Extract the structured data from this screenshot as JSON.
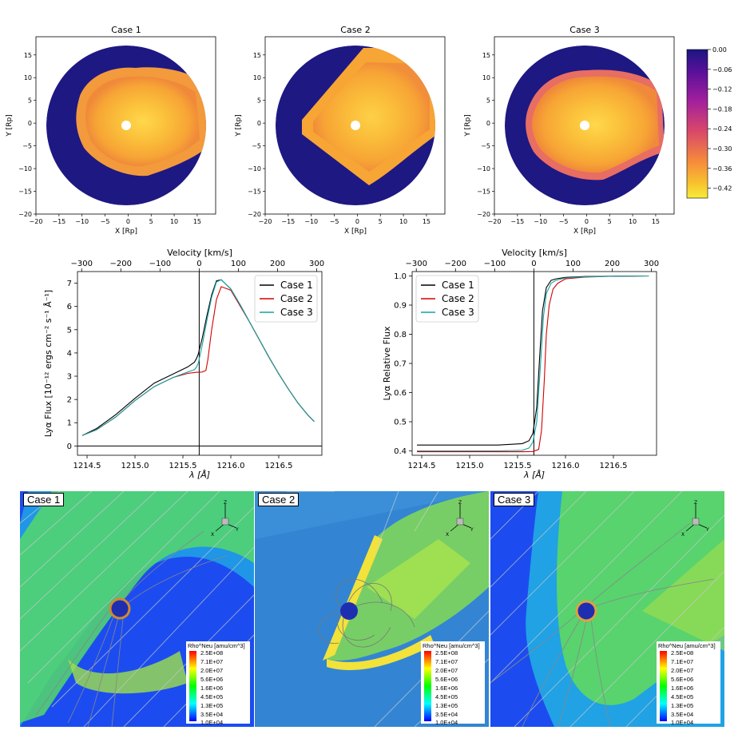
{
  "chart_data": [
    {
      "type": "heatmap",
      "panel": "case1_map",
      "title": "Case 1",
      "xlabel": "X [Rp]",
      "ylabel": "Y [Rp]",
      "xlim": [
        -20,
        19
      ],
      "ylim": [
        -20,
        19
      ],
      "xticks": [
        "−20",
        "−15",
        "−10",
        "−5",
        "0",
        "5",
        "10",
        "15"
      ],
      "yticks": [
        "15",
        "10",
        "5",
        "0",
        "−5",
        "−10",
        "−15",
        "−20"
      ]
    },
    {
      "type": "heatmap",
      "panel": "case2_map",
      "title": "Case 2",
      "xlabel": "X [Rp]",
      "ylabel": "Y [Rp]",
      "xlim": [
        -20,
        19
      ],
      "ylim": [
        -20,
        19
      ],
      "xticks": [
        "−20",
        "−15",
        "−10",
        "−5",
        "0",
        "5",
        "10",
        "15"
      ],
      "yticks": [
        "15",
        "10",
        "5",
        "0",
        "−5",
        "−10",
        "−15",
        "−20"
      ]
    },
    {
      "type": "heatmap",
      "panel": "case3_map",
      "title": "Case 3",
      "xlabel": "X [Rp]",
      "ylabel": "Y [Rp]",
      "xlim": [
        -20,
        19
      ],
      "ylim": [
        -20,
        19
      ],
      "xticks": [
        "−20",
        "−15",
        "−10",
        "−5",
        "0",
        "5",
        "10",
        "15"
      ],
      "yticks": [
        "15",
        "10",
        "5",
        "0",
        "−5",
        "−10",
        "−15",
        "−20"
      ],
      "colorbar": {
        "range": [
          -0.45,
          0.0
        ],
        "ticks": [
          "0.00",
          "−0.06",
          "−0.12",
          "−0.18",
          "−0.24",
          "−0.30",
          "−0.36",
          "−0.42"
        ]
      }
    },
    {
      "type": "line",
      "panel": "flux",
      "xlabel": "λ [Å]",
      "x2label": "Velocity [km/s]",
      "ylabel": "Lyα Flux  [10⁻¹² ergs cm⁻² s⁻¹ Å⁻¹]",
      "xlim": [
        1214.4,
        1216.95
      ],
      "ylim": [
        -0.4,
        7.5
      ],
      "xticks": [
        1214.5,
        1215.0,
        1215.5,
        1216.0,
        1216.5
      ],
      "xtick_labels": [
        "1214.5",
        "1215.0",
        "1215.5",
        "1216.0",
        "1216.5"
      ],
      "yticks": [
        0,
        1,
        2,
        3,
        4,
        5,
        6,
        7
      ],
      "x2ticks": [
        -300,
        -200,
        -100,
        0,
        100,
        200,
        300
      ],
      "x2tick_labels": [
        "−300",
        "−200",
        "−100",
        "0",
        "100",
        "200",
        "300"
      ],
      "vline": 1215.67,
      "legend": "top-right",
      "series": [
        {
          "name": "Case 1",
          "color": "#000000",
          "x": [
            1214.45,
            1214.6,
            1214.8,
            1215.0,
            1215.2,
            1215.4,
            1215.55,
            1215.62,
            1215.64,
            1215.66,
            1215.7,
            1215.75,
            1215.8,
            1215.85,
            1215.9,
            1216.0,
            1216.1,
            1216.2,
            1216.3,
            1216.4,
            1216.5,
            1216.6,
            1216.7,
            1216.8,
            1216.87
          ],
          "y": [
            0.45,
            0.75,
            1.35,
            2.05,
            2.7,
            3.1,
            3.4,
            3.6,
            3.75,
            3.95,
            4.6,
            5.6,
            6.5,
            7.1,
            7.15,
            6.75,
            6.05,
            5.3,
            4.55,
            3.8,
            3.1,
            2.45,
            1.85,
            1.35,
            1.05
          ]
        },
        {
          "name": "Case 2",
          "color": "#d40000",
          "x": [
            1214.45,
            1214.6,
            1214.8,
            1215.0,
            1215.2,
            1215.4,
            1215.55,
            1215.62,
            1215.64,
            1215.66,
            1215.7,
            1215.74,
            1215.76,
            1215.8,
            1215.85,
            1215.9,
            1216.0,
            1216.1,
            1216.2,
            1216.3,
            1216.4,
            1216.5,
            1216.6,
            1216.7,
            1216.8,
            1216.87
          ],
          "y": [
            0.45,
            0.7,
            1.25,
            1.95,
            2.55,
            2.95,
            3.12,
            3.16,
            3.17,
            3.17,
            3.18,
            3.25,
            3.7,
            5.0,
            6.3,
            6.85,
            6.7,
            6.0,
            5.3,
            4.55,
            3.8,
            3.1,
            2.45,
            1.85,
            1.35,
            1.05
          ]
        },
        {
          "name": "Case 3",
          "color": "#17a2a2",
          "x": [
            1214.45,
            1214.6,
            1214.8,
            1215.0,
            1215.2,
            1215.4,
            1215.55,
            1215.62,
            1215.64,
            1215.66,
            1215.7,
            1215.75,
            1215.8,
            1215.85,
            1215.9,
            1216.0,
            1216.1,
            1216.2,
            1216.3,
            1216.4,
            1216.5,
            1216.6,
            1216.7,
            1216.8,
            1216.87
          ],
          "y": [
            0.45,
            0.7,
            1.25,
            1.95,
            2.55,
            2.95,
            3.18,
            3.28,
            3.38,
            3.55,
            4.3,
            5.4,
            6.4,
            7.05,
            7.15,
            6.75,
            6.05,
            5.3,
            4.55,
            3.8,
            3.1,
            2.45,
            1.85,
            1.35,
            1.05
          ]
        }
      ]
    },
    {
      "type": "line",
      "panel": "relative",
      "xlabel": "λ [Å]",
      "x2label": "Velocity [km/s]",
      "ylabel": "Lyα Relative Flux",
      "xlim": [
        1214.4,
        1216.95
      ],
      "ylim": [
        0.385,
        1.015
      ],
      "xticks": [
        1214.5,
        1215.0,
        1215.5,
        1216.0,
        1216.5
      ],
      "xtick_labels": [
        "1214.5",
        "1215.0",
        "1215.5",
        "1216.0",
        "1216.5"
      ],
      "yticks": [
        0.4,
        0.5,
        0.6,
        0.7,
        0.8,
        0.9,
        1.0
      ],
      "ytick_labels": [
        "0.4",
        "0.5",
        "0.6",
        "0.7",
        "0.8",
        "0.9",
        "1.0"
      ],
      "x2ticks": [
        -300,
        -200,
        -100,
        0,
        100,
        200,
        300
      ],
      "x2tick_labels": [
        "−300",
        "−200",
        "−100",
        "0",
        "100",
        "200",
        "300"
      ],
      "vline": 1215.67,
      "legend": "top-left",
      "series": [
        {
          "name": "Case 1",
          "color": "#000000",
          "x": [
            1214.45,
            1215.3,
            1215.55,
            1215.62,
            1215.66,
            1215.7,
            1215.73,
            1215.76,
            1215.8,
            1215.85,
            1215.9,
            1216.0,
            1216.2,
            1216.5,
            1216.87
          ],
          "y": [
            0.42,
            0.42,
            0.425,
            0.435,
            0.46,
            0.55,
            0.72,
            0.88,
            0.96,
            0.985,
            0.99,
            0.995,
            0.998,
            0.999,
            1.0
          ]
        },
        {
          "name": "Case 2",
          "color": "#d40000",
          "x": [
            1214.45,
            1215.3,
            1215.55,
            1215.66,
            1215.72,
            1215.75,
            1215.78,
            1215.8,
            1215.83,
            1215.87,
            1215.92,
            1216.0,
            1216.2,
            1216.5,
            1216.87
          ],
          "y": [
            0.397,
            0.397,
            0.397,
            0.398,
            0.405,
            0.47,
            0.65,
            0.8,
            0.9,
            0.955,
            0.975,
            0.99,
            0.996,
            0.999,
            1.0
          ]
        },
        {
          "name": "Case 3",
          "color": "#17a2a2",
          "x": [
            1214.45,
            1215.3,
            1215.55,
            1215.62,
            1215.66,
            1215.7,
            1215.74,
            1215.77,
            1215.8,
            1215.85,
            1215.9,
            1216.0,
            1216.2,
            1216.5,
            1216.87
          ],
          "y": [
            0.4,
            0.4,
            0.402,
            0.41,
            0.43,
            0.5,
            0.7,
            0.86,
            0.94,
            0.975,
            0.985,
            0.993,
            0.997,
            0.999,
            1.0
          ]
        }
      ]
    }
  ],
  "simulations": [
    {
      "label": "Case 1"
    },
    {
      "label": "Case 2"
    },
    {
      "label": "Case 3"
    }
  ],
  "sim_legend": {
    "title": "Rho^Neu [amu/cm^3]",
    "ticks": [
      "2.5E+08",
      "7.1E+07",
      "2.0E+07",
      "5.6E+06",
      "1.6E+06",
      "4.5E+05",
      "1.3E+05",
      "3.5E+04",
      "1.0E+04"
    ]
  },
  "axes_triad": {
    "x": "X",
    "y": "Y",
    "z": "Z"
  },
  "colors": {
    "dark_region": "#1e1882",
    "core": "#f5a623",
    "cb_top": "#1e1a8c",
    "cb_bottom": "#f6e83c",
    "sim_background": "#1c4cf0",
    "streamline": "#b0b0b0"
  }
}
